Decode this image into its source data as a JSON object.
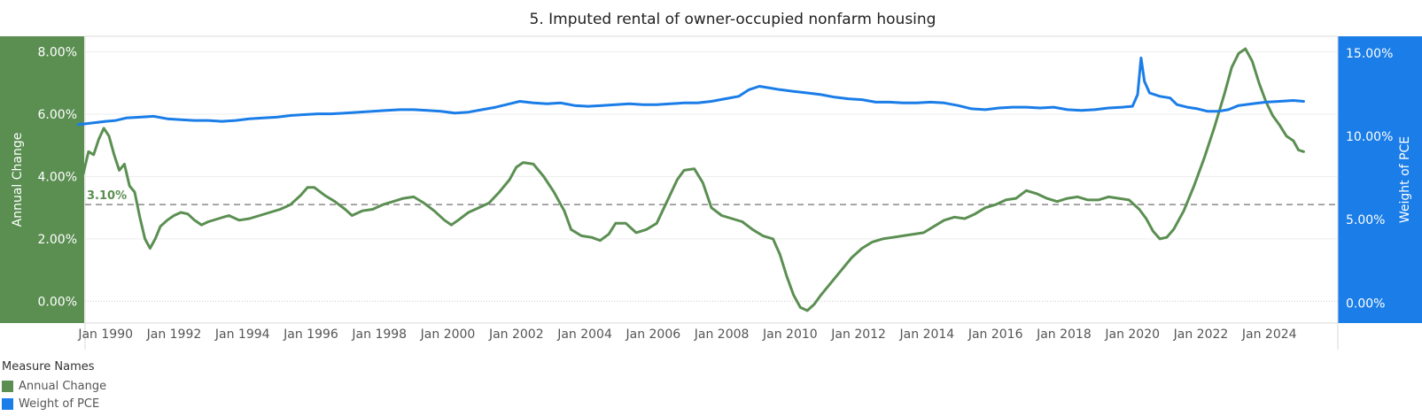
{
  "chart_data": {
    "type": "line",
    "title": "5. Imputed rental of owner-occupied nonfarm housing",
    "left_axis": {
      "label": "Annual Change",
      "ylim": [
        -0.7,
        8.5
      ],
      "ticks": [
        0,
        2,
        4,
        6,
        8
      ],
      "tick_labels": [
        "0.00%",
        "2.00%",
        "4.00%",
        "6.00%",
        "8.00%"
      ]
    },
    "right_axis": {
      "label": "Weight of PCE",
      "ylim": [
        -1.2,
        16.0
      ],
      "ticks": [
        0,
        5,
        10,
        15
      ],
      "tick_labels": [
        "0.00%",
        "5.00%",
        "10.00%",
        "15.00%"
      ]
    },
    "x_ticks": [
      1990,
      1992,
      1994,
      1996,
      1998,
      2000,
      2002,
      2004,
      2006,
      2008,
      2010,
      2012,
      2014,
      2016,
      2018,
      2020,
      2022,
      2024
    ],
    "x_tick_labels": [
      "Jan 1990",
      "Jan 1992",
      "Jan 1994",
      "Jan 1996",
      "Jan 1998",
      "Jan 2000",
      "Jan 2002",
      "Jan 2004",
      "Jan 2006",
      "Jan 2008",
      "Jan 2010",
      "Jan 2012",
      "Jan 2014",
      "Jan 2016",
      "Jan 2018",
      "Jan 2020",
      "Jan 2022",
      "Jan 2024"
    ],
    "xlim": [
      1989.4,
      2026.0
    ],
    "reference_line": {
      "value": 3.1,
      "label": "3.10%",
      "axis": "left"
    },
    "legend": {
      "title": "Measure Names",
      "position": "bottom-left"
    },
    "series": [
      {
        "name": "Annual Change",
        "axis": "left",
        "color": "#5b8f52",
        "points": [
          [
            1989.2,
            4.5
          ],
          [
            1989.35,
            4.1
          ],
          [
            1989.5,
            4.8
          ],
          [
            1989.65,
            4.7
          ],
          [
            1989.8,
            5.2
          ],
          [
            1989.95,
            5.55
          ],
          [
            1990.1,
            5.3
          ],
          [
            1990.25,
            4.7
          ],
          [
            1990.4,
            4.2
          ],
          [
            1990.55,
            4.4
          ],
          [
            1990.7,
            3.7
          ],
          [
            1990.85,
            3.5
          ],
          [
            1991.0,
            2.7
          ],
          [
            1991.15,
            2.0
          ],
          [
            1991.3,
            1.7
          ],
          [
            1991.45,
            2.0
          ],
          [
            1991.6,
            2.4
          ],
          [
            1991.8,
            2.6
          ],
          [
            1992.0,
            2.75
          ],
          [
            1992.2,
            2.85
          ],
          [
            1992.4,
            2.8
          ],
          [
            1992.6,
            2.6
          ],
          [
            1992.8,
            2.45
          ],
          [
            1993.0,
            2.55
          ],
          [
            1993.3,
            2.65
          ],
          [
            1993.6,
            2.75
          ],
          [
            1993.9,
            2.6
          ],
          [
            1994.2,
            2.65
          ],
          [
            1994.5,
            2.75
          ],
          [
            1994.8,
            2.85
          ],
          [
            1995.1,
            2.95
          ],
          [
            1995.4,
            3.1
          ],
          [
            1995.7,
            3.4
          ],
          [
            1995.9,
            3.65
          ],
          [
            1996.1,
            3.65
          ],
          [
            1996.4,
            3.4
          ],
          [
            1996.7,
            3.2
          ],
          [
            1997.0,
            2.95
          ],
          [
            1997.2,
            2.75
          ],
          [
            1997.5,
            2.9
          ],
          [
            1997.8,
            2.95
          ],
          [
            1998.1,
            3.1
          ],
          [
            1998.4,
            3.2
          ],
          [
            1998.7,
            3.3
          ],
          [
            1999.0,
            3.35
          ],
          [
            1999.3,
            3.15
          ],
          [
            1999.6,
            2.9
          ],
          [
            1999.9,
            2.6
          ],
          [
            2000.1,
            2.45
          ],
          [
            2000.3,
            2.6
          ],
          [
            2000.6,
            2.85
          ],
          [
            2000.9,
            3.0
          ],
          [
            2001.2,
            3.15
          ],
          [
            2001.5,
            3.5
          ],
          [
            2001.8,
            3.9
          ],
          [
            2002.0,
            4.3
          ],
          [
            2002.2,
            4.45
          ],
          [
            2002.5,
            4.4
          ],
          [
            2002.8,
            4.0
          ],
          [
            2003.1,
            3.5
          ],
          [
            2003.4,
            2.9
          ],
          [
            2003.6,
            2.3
          ],
          [
            2003.9,
            2.1
          ],
          [
            2004.2,
            2.05
          ],
          [
            2004.45,
            1.95
          ],
          [
            2004.7,
            2.15
          ],
          [
            2004.9,
            2.5
          ],
          [
            2005.2,
            2.5
          ],
          [
            2005.5,
            2.2
          ],
          [
            2005.8,
            2.3
          ],
          [
            2006.1,
            2.5
          ],
          [
            2006.4,
            3.2
          ],
          [
            2006.7,
            3.9
          ],
          [
            2006.9,
            4.2
          ],
          [
            2007.2,
            4.25
          ],
          [
            2007.45,
            3.8
          ],
          [
            2007.7,
            3.0
          ],
          [
            2008.0,
            2.75
          ],
          [
            2008.3,
            2.65
          ],
          [
            2008.6,
            2.55
          ],
          [
            2008.9,
            2.3
          ],
          [
            2009.2,
            2.1
          ],
          [
            2009.5,
            2.0
          ],
          [
            2009.7,
            1.5
          ],
          [
            2009.9,
            0.8
          ],
          [
            2010.1,
            0.2
          ],
          [
            2010.3,
            -0.2
          ],
          [
            2010.5,
            -0.3
          ],
          [
            2010.7,
            -0.1
          ],
          [
            2010.9,
            0.2
          ],
          [
            2011.2,
            0.6
          ],
          [
            2011.5,
            1.0
          ],
          [
            2011.8,
            1.4
          ],
          [
            2012.1,
            1.7
          ],
          [
            2012.4,
            1.9
          ],
          [
            2012.7,
            2.0
          ],
          [
            2013.0,
            2.05
          ],
          [
            2013.3,
            2.1
          ],
          [
            2013.6,
            2.15
          ],
          [
            2013.9,
            2.2
          ],
          [
            2014.2,
            2.4
          ],
          [
            2014.5,
            2.6
          ],
          [
            2014.8,
            2.7
          ],
          [
            2015.1,
            2.65
          ],
          [
            2015.4,
            2.8
          ],
          [
            2015.7,
            3.0
          ],
          [
            2016.0,
            3.1
          ],
          [
            2016.3,
            3.25
          ],
          [
            2016.6,
            3.3
          ],
          [
            2016.9,
            3.55
          ],
          [
            2017.2,
            3.45
          ],
          [
            2017.5,
            3.3
          ],
          [
            2017.8,
            3.2
          ],
          [
            2018.1,
            3.3
          ],
          [
            2018.4,
            3.35
          ],
          [
            2018.7,
            3.25
          ],
          [
            2019.0,
            3.25
          ],
          [
            2019.3,
            3.35
          ],
          [
            2019.6,
            3.3
          ],
          [
            2019.9,
            3.25
          ],
          [
            2020.2,
            2.95
          ],
          [
            2020.4,
            2.65
          ],
          [
            2020.6,
            2.25
          ],
          [
            2020.8,
            2.0
          ],
          [
            2021.0,
            2.05
          ],
          [
            2021.2,
            2.3
          ],
          [
            2021.5,
            2.9
          ],
          [
            2021.8,
            3.7
          ],
          [
            2022.1,
            4.6
          ],
          [
            2022.4,
            5.6
          ],
          [
            2022.7,
            6.7
          ],
          [
            2022.9,
            7.5
          ],
          [
            2023.1,
            7.95
          ],
          [
            2023.3,
            8.1
          ],
          [
            2023.5,
            7.7
          ],
          [
            2023.7,
            7.0
          ],
          [
            2023.9,
            6.4
          ],
          [
            2024.1,
            5.95
          ],
          [
            2024.3,
            5.65
          ],
          [
            2024.5,
            5.3
          ],
          [
            2024.7,
            5.15
          ],
          [
            2024.85,
            4.85
          ],
          [
            2025.0,
            4.8
          ]
        ]
      },
      {
        "name": "Weight of PCE",
        "axis": "right",
        "color": "#1a7de8",
        "points": [
          [
            1989.2,
            10.7
          ],
          [
            1989.6,
            10.8
          ],
          [
            1990.0,
            10.9
          ],
          [
            1990.3,
            10.95
          ],
          [
            1990.6,
            11.1
          ],
          [
            1991.0,
            11.15
          ],
          [
            1991.4,
            11.2
          ],
          [
            1991.8,
            11.05
          ],
          [
            1992.2,
            11.0
          ],
          [
            1992.6,
            10.95
          ],
          [
            1993.0,
            10.95
          ],
          [
            1993.4,
            10.9
          ],
          [
            1993.8,
            10.95
          ],
          [
            1994.2,
            11.05
          ],
          [
            1994.6,
            11.1
          ],
          [
            1995.0,
            11.15
          ],
          [
            1995.4,
            11.25
          ],
          [
            1995.8,
            11.3
          ],
          [
            1996.2,
            11.35
          ],
          [
            1996.6,
            11.35
          ],
          [
            1997.0,
            11.4
          ],
          [
            1997.4,
            11.45
          ],
          [
            1997.8,
            11.5
          ],
          [
            1998.2,
            11.55
          ],
          [
            1998.6,
            11.6
          ],
          [
            1999.0,
            11.6
          ],
          [
            1999.4,
            11.55
          ],
          [
            1999.8,
            11.5
          ],
          [
            2000.2,
            11.4
          ],
          [
            2000.6,
            11.45
          ],
          [
            2001.0,
            11.6
          ],
          [
            2001.4,
            11.75
          ],
          [
            2001.8,
            11.95
          ],
          [
            2002.1,
            12.1
          ],
          [
            2002.5,
            12.0
          ],
          [
            2002.9,
            11.95
          ],
          [
            2003.3,
            12.0
          ],
          [
            2003.7,
            11.85
          ],
          [
            2004.1,
            11.8
          ],
          [
            2004.5,
            11.85
          ],
          [
            2004.9,
            11.9
          ],
          [
            2005.3,
            11.95
          ],
          [
            2005.7,
            11.9
          ],
          [
            2006.1,
            11.9
          ],
          [
            2006.5,
            11.95
          ],
          [
            2006.9,
            12.0
          ],
          [
            2007.3,
            12.0
          ],
          [
            2007.7,
            12.1
          ],
          [
            2008.1,
            12.25
          ],
          [
            2008.5,
            12.4
          ],
          [
            2008.8,
            12.8
          ],
          [
            2009.1,
            13.0
          ],
          [
            2009.4,
            12.9
          ],
          [
            2009.7,
            12.8
          ],
          [
            2010.1,
            12.7
          ],
          [
            2010.5,
            12.6
          ],
          [
            2010.9,
            12.5
          ],
          [
            2011.3,
            12.35
          ],
          [
            2011.7,
            12.25
          ],
          [
            2012.1,
            12.2
          ],
          [
            2012.5,
            12.05
          ],
          [
            2012.9,
            12.05
          ],
          [
            2013.3,
            12.0
          ],
          [
            2013.7,
            12.0
          ],
          [
            2014.1,
            12.05
          ],
          [
            2014.5,
            12.0
          ],
          [
            2014.9,
            11.85
          ],
          [
            2015.3,
            11.65
          ],
          [
            2015.7,
            11.6
          ],
          [
            2016.1,
            11.7
          ],
          [
            2016.5,
            11.75
          ],
          [
            2016.9,
            11.75
          ],
          [
            2017.3,
            11.7
          ],
          [
            2017.7,
            11.75
          ],
          [
            2018.1,
            11.6
          ],
          [
            2018.5,
            11.55
          ],
          [
            2018.9,
            11.6
          ],
          [
            2019.3,
            11.7
          ],
          [
            2019.7,
            11.75
          ],
          [
            2020.0,
            11.8
          ],
          [
            2020.15,
            12.5
          ],
          [
            2020.25,
            14.7
          ],
          [
            2020.35,
            13.3
          ],
          [
            2020.5,
            12.6
          ],
          [
            2020.8,
            12.4
          ],
          [
            2021.1,
            12.3
          ],
          [
            2021.3,
            11.9
          ],
          [
            2021.6,
            11.75
          ],
          [
            2021.9,
            11.65
          ],
          [
            2022.2,
            11.5
          ],
          [
            2022.5,
            11.5
          ],
          [
            2022.8,
            11.6
          ],
          [
            2023.1,
            11.85
          ],
          [
            2023.5,
            11.95
          ],
          [
            2023.9,
            12.05
          ],
          [
            2024.3,
            12.1
          ],
          [
            2024.7,
            12.15
          ],
          [
            2025.0,
            12.1
          ]
        ]
      }
    ]
  }
}
